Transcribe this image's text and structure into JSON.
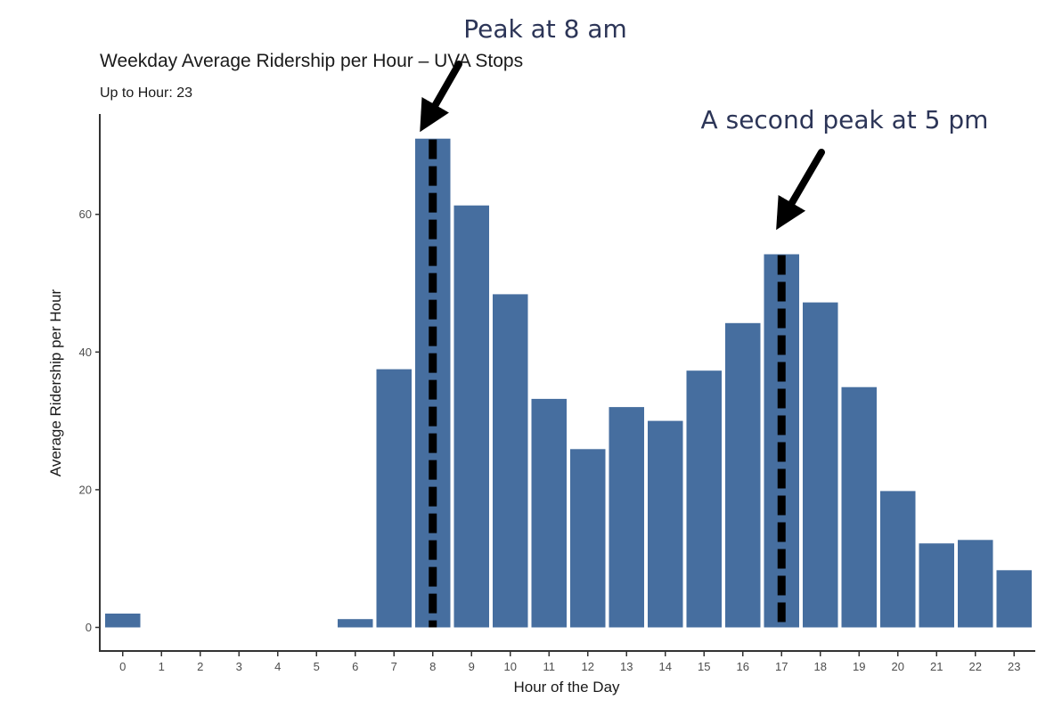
{
  "chart_data": {
    "type": "bar",
    "title": "Weekday Average Ridership per Hour – UVA Stops",
    "subtitle": "Up to Hour: 23",
    "xlabel": "Hour of the Day",
    "ylabel": "Average Ridership per Hour",
    "categories": [
      "0",
      "1",
      "2",
      "3",
      "4",
      "5",
      "6",
      "7",
      "8",
      "9",
      "10",
      "11",
      "12",
      "13",
      "14",
      "15",
      "16",
      "17",
      "18",
      "19",
      "20",
      "21",
      "22",
      "23"
    ],
    "values": [
      2,
      0,
      0,
      0,
      0,
      0,
      1.2,
      37.5,
      71,
      61.3,
      48.4,
      33.2,
      25.9,
      32.0,
      30.0,
      37.3,
      44.2,
      54.2,
      47.2,
      34.9,
      19.8,
      12.2,
      12.7,
      8.3
    ],
    "ylim": [
      0,
      71.5
    ],
    "yticks": [
      0,
      20,
      40,
      60
    ],
    "grid": false,
    "bar_color": "#466e9f",
    "marker_color": "#000000",
    "annotation_color": "#2c3557",
    "annotations": [
      {
        "text": "Peak at 8 am",
        "hour": 8
      },
      {
        "text": "A second peak at 5 pm",
        "hour": 17
      }
    ]
  }
}
